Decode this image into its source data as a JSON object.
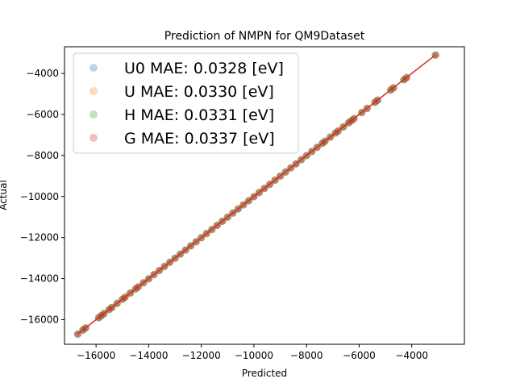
{
  "chart_data": {
    "type": "scatter",
    "title": "Prediction of NMPN for QM9Dataset",
    "xlabel": "Predicted",
    "ylabel": "Actual",
    "xlim": [
      -17200,
      -2000
    ],
    "ylim": [
      -17200,
      -2700
    ],
    "xticks": [
      -16000,
      -14000,
      -12000,
      -10000,
      -8000,
      -6000,
      -4000
    ],
    "yticks": [
      -16000,
      -14000,
      -12000,
      -10000,
      -8000,
      -6000,
      -4000
    ],
    "xtick_labels": [
      "−16000",
      "−14000",
      "−12000",
      "−10000",
      "−8000",
      "−6000",
      "−4000"
    ],
    "ytick_labels": [
      "−16000",
      "−14000",
      "−12000",
      "−10000",
      "−8000",
      "−6000",
      "−4000"
    ],
    "grid": false,
    "legend_position": "top-left",
    "series": [
      {
        "name": "U0 MAE: 0.0328 [eV]",
        "color": "#1f77b4"
      },
      {
        "name": "U MAE: 0.0330 [eV]",
        "color": "#ff7f0e"
      },
      {
        "name": "H MAE: 0.0331 [eV]",
        "color": "#2ca02c"
      },
      {
        "name": "G MAE: 0.0337 [eV]",
        "color": "#d62728"
      }
    ],
    "points_x": [
      -16700,
      -16500,
      -16400,
      -15900,
      -15800,
      -15700,
      -15500,
      -15400,
      -15200,
      -15000,
      -14900,
      -14700,
      -14500,
      -14400,
      -14200,
      -14000,
      -13800,
      -13600,
      -13400,
      -13200,
      -13000,
      -12800,
      -12600,
      -12400,
      -12200,
      -12000,
      -11800,
      -11600,
      -11400,
      -11200,
      -11000,
      -10800,
      -10600,
      -10400,
      -10200,
      -10000,
      -9800,
      -9600,
      -9400,
      -9200,
      -9000,
      -8800,
      -8600,
      -8400,
      -8200,
      -8000,
      -7800,
      -7600,
      -7400,
      -7300,
      -7100,
      -6900,
      -6800,
      -6600,
      -6400,
      -6300,
      -6200,
      -5900,
      -5700,
      -5400,
      -5300,
      -4800,
      -4700,
      -4300,
      -4200,
      -3100
    ],
    "fit_line": {
      "x": [
        -16700,
        -3100
      ],
      "y": [
        -16700,
        -3100
      ],
      "color": "#d62728"
    }
  }
}
